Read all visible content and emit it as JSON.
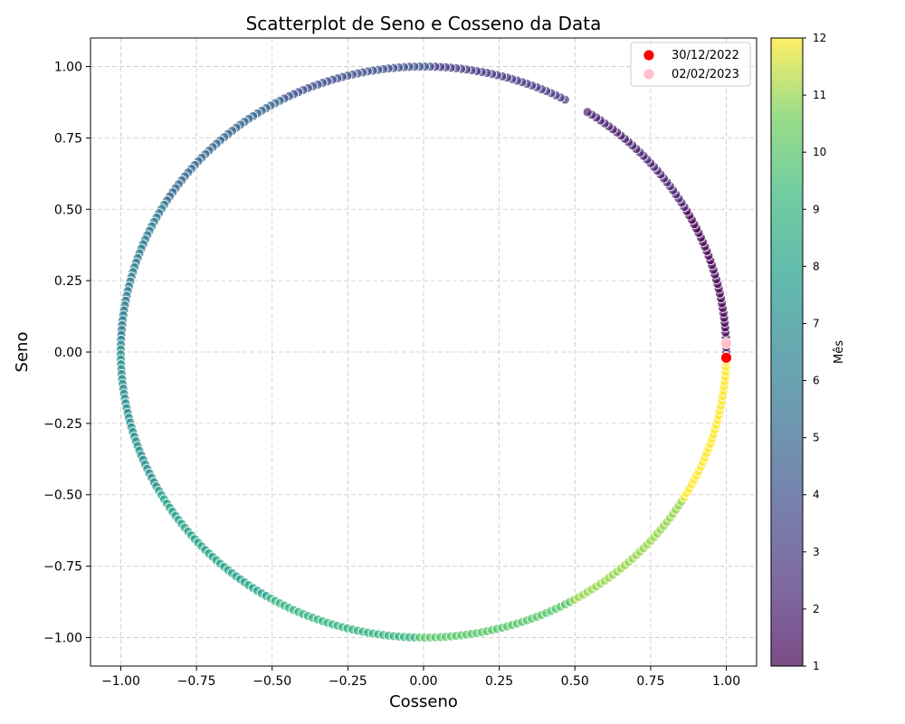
{
  "chart_data": {
    "type": "scatter",
    "title": "Scatterplot de Seno e Cosseno da Data",
    "xlabel": "Cosseno",
    "ylabel": "Seno",
    "xlim": [
      -1.1,
      1.1
    ],
    "ylim": [
      -1.1,
      1.1
    ],
    "xticks": [
      "−1.00",
      "−0.75",
      "−0.50",
      "−0.25",
      "0.00",
      "0.25",
      "0.50",
      "0.75",
      "1.00"
    ],
    "yticks": [
      "−1.00",
      "−0.75",
      "−0.50",
      "−0.25",
      "0.00",
      "0.25",
      "0.50",
      "0.75",
      "1.00"
    ],
    "grid": true,
    "series": [
      {
        "description": "daily points on unit circle (cos, sin of day-of-year angle), colored by month",
        "day_angle_step_days": 1,
        "days_per_year": 365,
        "color_by": "month",
        "colormap": "viridis",
        "alpha": 0.7,
        "gap_angle_start_deg": 58,
        "gap_angle_end_deg": 62
      }
    ],
    "highlights": [
      {
        "name": "30/12/2022",
        "x": 1.0,
        "y": -0.02,
        "color": "#ff0000"
      },
      {
        "name": "02/02/2023",
        "x": 1.0,
        "y": 0.03,
        "color": "#ffc0cb"
      }
    ],
    "legend": {
      "placement": "top-right",
      "entries": [
        {
          "label": "30/12/2022",
          "color": "#ff0000"
        },
        {
          "label": "02/02/2023",
          "color": "#ffc0cb"
        }
      ]
    },
    "colorbar": {
      "label": "Mês",
      "min": 1,
      "max": 12,
      "ticks": [
        "1",
        "2",
        "3",
        "4",
        "5",
        "6",
        "7",
        "8",
        "9",
        "10",
        "11",
        "12"
      ]
    }
  }
}
